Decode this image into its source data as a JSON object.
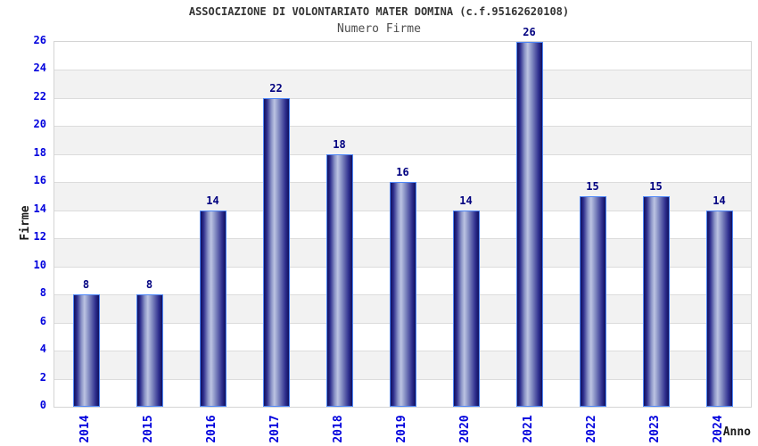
{
  "chart": {
    "title": "ASSOCIAZIONE DI VOLONTARIATO MATER DOMINA (c.f.95162620108)",
    "subtitle": "Numero Firme",
    "ylabel": "Firme",
    "xlabel": "Anno"
  },
  "chart_data": {
    "type": "bar",
    "title": "ASSOCIAZIONE DI VOLONTARIATO MATER DOMINA (c.f.95162620108)",
    "subtitle": "Numero Firme",
    "xlabel": "Anno",
    "ylabel": "Firme",
    "categories": [
      "2014",
      "2015",
      "2016",
      "2017",
      "2018",
      "2019",
      "2020",
      "2021",
      "2022",
      "2023",
      "2024"
    ],
    "values": [
      8,
      8,
      14,
      22,
      18,
      16,
      14,
      26,
      15,
      15,
      14
    ],
    "ylim": [
      0,
      26
    ],
    "ytick_step": 2,
    "yticks": [
      0,
      2,
      4,
      6,
      8,
      10,
      12,
      14,
      16,
      18,
      20,
      22,
      24,
      26
    ],
    "grid": "horizontal-bands",
    "legend": "none",
    "value_labels": "above-bars",
    "xtick_rotation": -90,
    "colors": {
      "bar_edge": "#10105e",
      "bar_highlight": "#bcc3e2",
      "bar_border": "#4d86f7",
      "tick_label": "#0000dd",
      "value_label": "#000080",
      "band_alt": "#f2f2f2",
      "band_main": "#ffffff",
      "grid_line": "#dcdcdc",
      "plot_border": "#d4d4d4",
      "title_color": "#333333",
      "subtitle_color": "#4d4d4d",
      "axis_title_color": "#1a1a1a"
    }
  }
}
